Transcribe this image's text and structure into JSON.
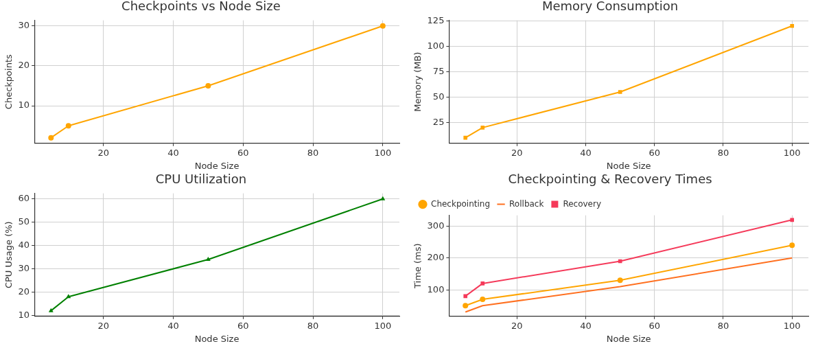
{
  "chart_data": [
    {
      "type": "line",
      "title": "Checkpoints vs Node Size",
      "xlabel": "Node Size",
      "ylabel": "Checkpoints",
      "x": [
        5,
        10,
        50,
        100
      ],
      "xlim": [
        0.25,
        104.75
      ],
      "xticks": [
        20,
        40,
        60,
        80,
        100
      ],
      "ylim": [
        0.6,
        31.4
      ],
      "yticks": [
        10,
        20,
        30
      ],
      "grid": true,
      "legend": false,
      "marker": "circle",
      "series": [
        {
          "color": "#ffa500",
          "values": [
            2,
            5,
            15,
            30
          ]
        }
      ]
    },
    {
      "type": "line",
      "title": "Memory Consumption",
      "xlabel": "Node Size",
      "ylabel": "Memory (MB)",
      "x": [
        5,
        10,
        50,
        100
      ],
      "xlim": [
        0.25,
        104.75
      ],
      "xticks": [
        20,
        40,
        60,
        80,
        100
      ],
      "ylim": [
        4.5,
        125.5
      ],
      "yticks": [
        25,
        50,
        75,
        100,
        125
      ],
      "grid": true,
      "legend": false,
      "marker": "square",
      "series": [
        {
          "color": "#ffa500",
          "values": [
            10,
            20,
            55,
            120
          ]
        }
      ]
    },
    {
      "type": "line",
      "title": "CPU Utilization",
      "xlabel": "Node Size",
      "ylabel": "CPU Usage (%)",
      "x": [
        5,
        10,
        50,
        100
      ],
      "xlim": [
        0.25,
        104.75
      ],
      "xticks": [
        20,
        40,
        60,
        80,
        100
      ],
      "ylim": [
        9.6,
        62.4
      ],
      "yticks": [
        10,
        20,
        30,
        40,
        50,
        60
      ],
      "grid": true,
      "legend": false,
      "marker": "triangle",
      "series": [
        {
          "color": "#008000",
          "values": [
            12,
            18,
            34,
            60
          ]
        }
      ]
    },
    {
      "type": "line",
      "title": "Checkpointing & Recovery Times",
      "xlabel": "Node Size",
      "ylabel": "Time (ms)",
      "x": [
        5,
        10,
        50,
        100
      ],
      "xlim": [
        0.25,
        104.75
      ],
      "xticks": [
        20,
        40,
        60,
        80,
        100
      ],
      "ylim": [
        16.5,
        334.5
      ],
      "yticks": [
        100,
        200,
        300
      ],
      "grid": true,
      "legend": "top left",
      "series": [
        {
          "name": "Checkpointing",
          "color": "#ffa500",
          "marker": "circle",
          "values": [
            50,
            70,
            130,
            240
          ]
        },
        {
          "name": "Rollback",
          "color": "#ff7020",
          "marker": "none",
          "values": [
            30,
            50,
            110,
            200
          ]
        },
        {
          "name": "Recovery",
          "color": "#f53a5a",
          "marker": "square",
          "values": [
            80,
            120,
            190,
            320
          ]
        }
      ]
    }
  ]
}
